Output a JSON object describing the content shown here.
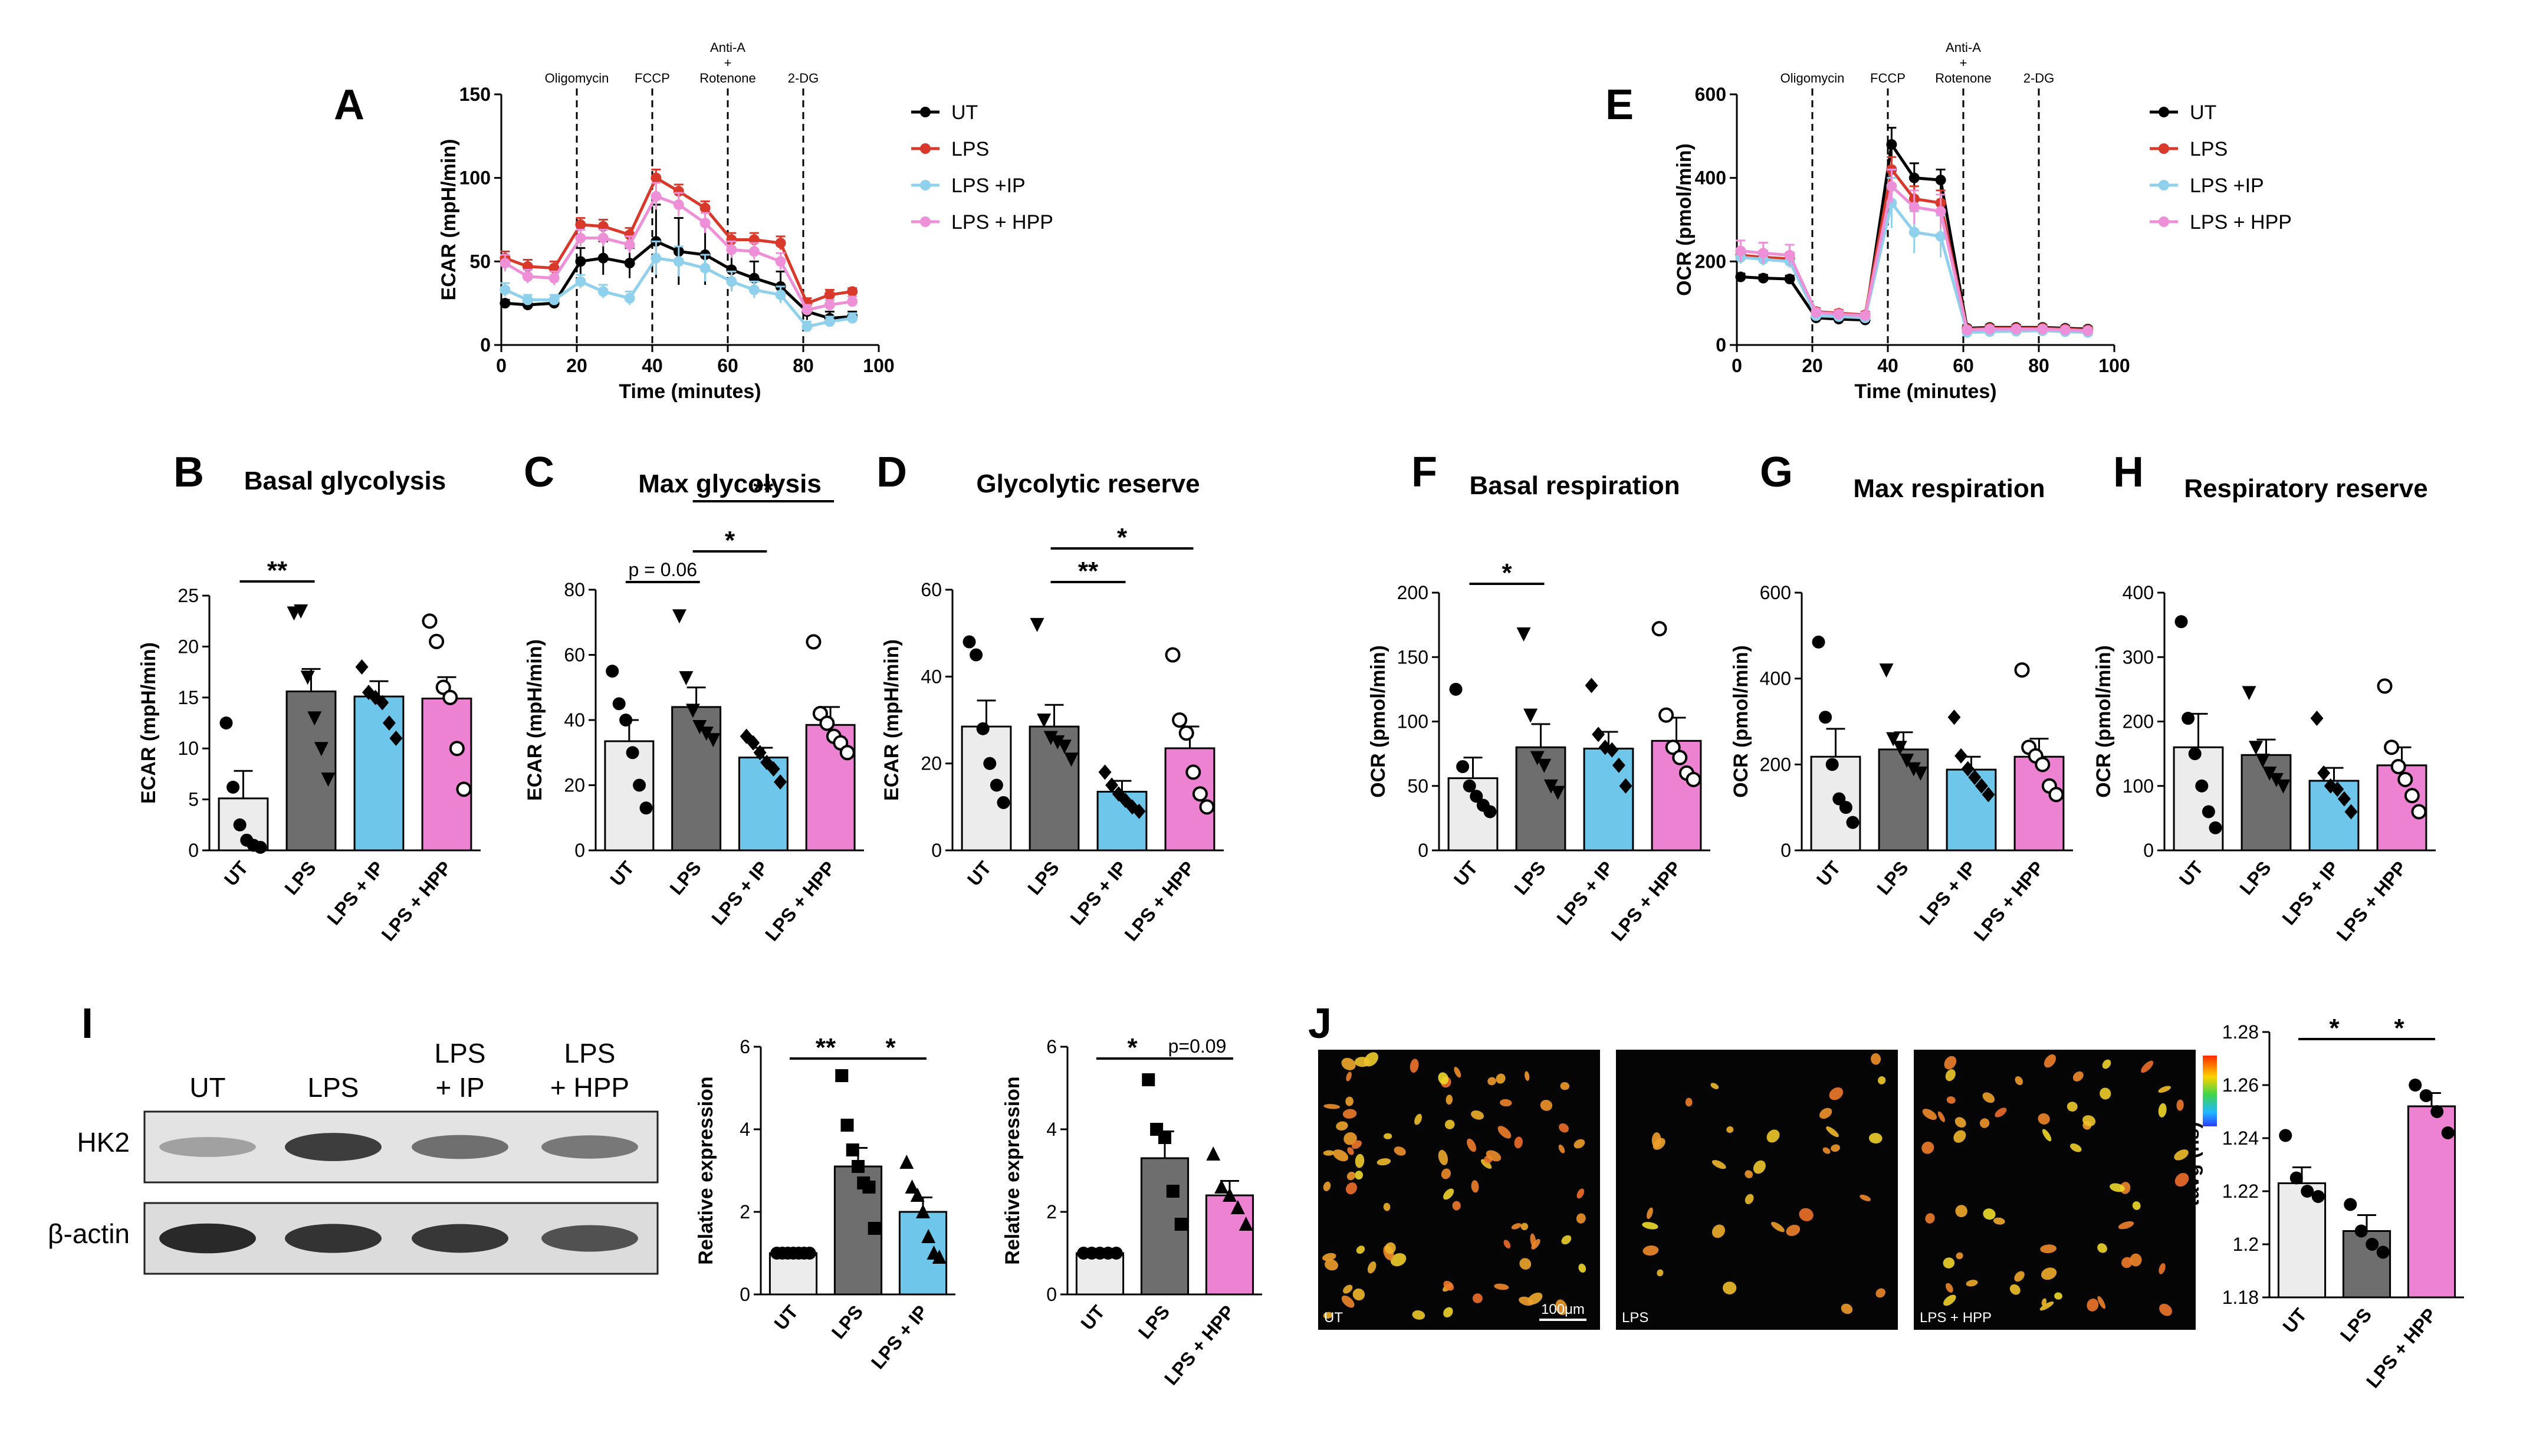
{
  "colors": {
    "UT": "#ececec",
    "LPS": "#6e6e6e",
    "IP": "#6ec6ea",
    "HPP": "#ee82d2",
    "line_UT": "#000000",
    "line_LPS": "#d9392b",
    "line_IP": "#8fd0ec",
    "line_HPP": "#ee90d8"
  },
  "legend": [
    {
      "label": "UT",
      "color_key": "line_UT"
    },
    {
      "label": "LPS",
      "color_key": "line_LPS"
    },
    {
      "label": "LPS +IP",
      "color_key": "line_IP"
    },
    {
      "label": "LPS + HPP",
      "color_key": "line_HPP"
    }
  ],
  "legend_E": [
    {
      "label": "UT",
      "color_key": "line_UT"
    },
    {
      "label": "LPS",
      "color_key": "line_LPS"
    },
    {
      "label": "LPS +IP",
      "color_key": "line_IP"
    },
    {
      "label": "LPS + HPP",
      "color_key": "line_HPP"
    }
  ],
  "blot": {
    "lanes": [
      "UT",
      "LPS",
      "LPS\n+ IP",
      "LPS\n+ HPP"
    ],
    "rows": [
      "HK2",
      "β-actin"
    ],
    "hk2_intensity": [
      0.35,
      0.85,
      0.6,
      0.55
    ],
    "actin_intensity": [
      0.95,
      0.9,
      0.88,
      0.75
    ]
  },
  "micro": {
    "labels": [
      "UT",
      "LPS",
      "LPS + HPP"
    ],
    "scalebar": "100μm",
    "cell_counts": [
      80,
      30,
      55
    ]
  },
  "chart_data": [
    {
      "id": "A",
      "type": "line",
      "panel": "A",
      "xlabel": "Time (minutes)",
      "ylabel": "ECAR (mpH/min)",
      "xlim": [
        0,
        100
      ],
      "ylim": [
        0,
        150
      ],
      "xticks": [
        0,
        20,
        40,
        60,
        80,
        100
      ],
      "yticks": [
        0,
        50,
        100,
        150
      ],
      "injections": [
        {
          "x": 20,
          "label": "Oligomycin"
        },
        {
          "x": 40,
          "label": "FCCP"
        },
        {
          "x": 60,
          "label": "Anti-A\n+\nRotenone"
        },
        {
          "x": 80,
          "label": "2-DG"
        }
      ],
      "x": [
        1,
        7,
        14,
        21,
        27,
        34,
        41,
        47,
        54,
        61,
        67,
        74,
        81,
        87,
        93
      ],
      "series": [
        {
          "name": "UT",
          "color_key": "line_UT",
          "values": [
            25,
            24,
            25,
            50,
            52,
            49,
            62,
            56,
            54,
            45,
            40,
            35,
            20,
            16,
            17
          ],
          "err": [
            2,
            2,
            2,
            8,
            10,
            9,
            22,
            20,
            18,
            12,
            10,
            9,
            5,
            4,
            3
          ]
        },
        {
          "name": "LPS",
          "color_key": "line_LPS",
          "values": [
            52,
            47,
            46,
            72,
            71,
            66,
            100,
            92,
            82,
            63,
            63,
            61,
            25,
            30,
            32
          ],
          "err": [
            4,
            4,
            4,
            4,
            4,
            4,
            5,
            4,
            4,
            4,
            4,
            4,
            3,
            3,
            2
          ]
        },
        {
          "name": "LPS +IP",
          "color_key": "line_IP",
          "values": [
            33,
            27,
            27,
            38,
            32,
            28,
            52,
            50,
            46,
            38,
            33,
            30,
            11,
            14,
            16
          ],
          "err": [
            4,
            3,
            3,
            4,
            4,
            4,
            10,
            9,
            8,
            6,
            5,
            5,
            3,
            3,
            3
          ]
        },
        {
          "name": "LPS + HPP",
          "color_key": "line_HPP",
          "values": [
            49,
            41,
            40,
            64,
            64,
            60,
            89,
            84,
            73,
            57,
            56,
            50,
            21,
            24,
            26
          ],
          "err": [
            5,
            4,
            4,
            5,
            5,
            5,
            8,
            7,
            6,
            5,
            5,
            5,
            3,
            3,
            3
          ]
        }
      ]
    },
    {
      "id": "E",
      "type": "line",
      "panel": "E",
      "xlabel": "Time (minutes)",
      "ylabel": "OCR (pmol/min)",
      "xlim": [
        0,
        100
      ],
      "ylim": [
        0,
        600
      ],
      "xticks": [
        0,
        20,
        40,
        60,
        80,
        100
      ],
      "yticks": [
        0,
        200,
        400,
        600
      ],
      "injections": [
        {
          "x": 20,
          "label": "Oligomycin"
        },
        {
          "x": 40,
          "label": "FCCP"
        },
        {
          "x": 60,
          "label": "Anti-A\n+\nRotenone"
        },
        {
          "x": 80,
          "label": "2-DG"
        }
      ],
      "x": [
        1,
        7,
        14,
        21,
        27,
        34,
        41,
        47,
        54,
        61,
        67,
        74,
        81,
        87,
        93
      ],
      "series": [
        {
          "name": "UT",
          "color_key": "line_UT",
          "values": [
            163,
            160,
            158,
            65,
            62,
            60,
            480,
            400,
            395,
            40,
            42,
            42,
            42,
            40,
            38
          ],
          "err": [
            8,
            8,
            8,
            6,
            6,
            6,
            40,
            35,
            25,
            6,
            6,
            6,
            6,
            6,
            6
          ]
        },
        {
          "name": "LPS",
          "color_key": "line_LPS",
          "values": [
            215,
            210,
            206,
            80,
            76,
            72,
            420,
            350,
            340,
            38,
            40,
            40,
            40,
            38,
            36
          ],
          "err": [
            15,
            15,
            15,
            8,
            8,
            8,
            30,
            30,
            30,
            6,
            6,
            6,
            6,
            6,
            6
          ]
        },
        {
          "name": "LPS +IP",
          "color_key": "line_IP",
          "values": [
            210,
            205,
            200,
            70,
            68,
            65,
            340,
            270,
            260,
            30,
            32,
            33,
            34,
            32,
            30
          ],
          "err": [
            15,
            15,
            15,
            8,
            8,
            8,
            60,
            50,
            50,
            6,
            6,
            6,
            6,
            6,
            6
          ]
        },
        {
          "name": "LPS + HPP",
          "color_key": "line_HPP",
          "values": [
            225,
            220,
            215,
            78,
            74,
            70,
            380,
            330,
            320,
            36,
            38,
            38,
            38,
            36,
            34
          ],
          "err": [
            25,
            25,
            25,
            8,
            8,
            8,
            40,
            40,
            40,
            6,
            6,
            6,
            6,
            6,
            6
          ]
        }
      ]
    },
    {
      "id": "B",
      "type": "bar",
      "panel": "B",
      "title": "Basal glycolysis",
      "ylabel": "ECAR (mpH/min)",
      "ylim": [
        0,
        25
      ],
      "yticks": [
        0,
        5,
        10,
        15,
        20,
        25
      ],
      "categories": [
        "UT",
        "LPS",
        "LPS + IP",
        "LPS + HPP"
      ],
      "color_keys": [
        "UT",
        "LPS",
        "IP",
        "HPP"
      ],
      "markers": [
        "circle",
        "tri-down",
        "diamond",
        "open-circle"
      ],
      "values": [
        5.1,
        15.6,
        15.1,
        14.9
      ],
      "err": [
        2.7,
        2.2,
        1.5,
        2.1
      ],
      "points": [
        [
          12.5,
          6.2,
          2.5,
          1.0,
          0.5,
          0.3
        ],
        [
          23.3,
          23.5,
          17.0,
          13.0,
          10.0,
          7.0
        ],
        [
          18.0,
          15.5,
          15.0,
          14.5,
          12.5,
          11.0
        ],
        [
          22.5,
          20.5,
          16.0,
          15.0,
          10.0,
          6.0
        ]
      ],
      "sig": [
        {
          "from": 0,
          "to": 1,
          "label": "**"
        }
      ]
    },
    {
      "id": "C",
      "type": "bar",
      "panel": "C",
      "title": "Max glycolysis",
      "ylabel": "ECAR (mpH/min)",
      "ylim": [
        0,
        80
      ],
      "yticks": [
        0,
        20,
        40,
        60,
        80
      ],
      "categories": [
        "UT",
        "LPS",
        "LPS + IP",
        "LPS + HPP"
      ],
      "color_keys": [
        "UT",
        "LPS",
        "IP",
        "HPP"
      ],
      "markers": [
        "circle",
        "tri-down",
        "diamond",
        "open-circle"
      ],
      "values": [
        33.5,
        44.0,
        28.5,
        38.5
      ],
      "err": [
        6.5,
        6.0,
        3.0,
        5.5
      ],
      "points": [
        [
          55.0,
          45.0,
          40.0,
          30.0,
          20.0,
          13.0
        ],
        [
          72.0,
          53.0,
          43.0,
          38.0,
          36.0,
          34.0
        ],
        [
          35.0,
          33.0,
          30.0,
          27.0,
          25.0,
          21.0
        ],
        [
          64.0,
          42.0,
          39.0,
          35.0,
          33.0,
          30.0
        ]
      ],
      "sig": [
        {
          "from": 0,
          "to": 1,
          "label": "p = 0.06"
        },
        {
          "from": 1,
          "to": 2,
          "label": "*"
        },
        {
          "from": 1,
          "to": 3,
          "label": "**"
        }
      ]
    },
    {
      "id": "D",
      "type": "bar",
      "panel": "D",
      "title": "Glycolytic reserve",
      "ylabel": "ECAR (mpH/min)",
      "ylim": [
        0,
        60
      ],
      "yticks": [
        0,
        20,
        40,
        60
      ],
      "categories": [
        "UT",
        "LPS",
        "LPS + IP",
        "LPS + HPP"
      ],
      "color_keys": [
        "UT",
        "LPS",
        "IP",
        "HPP"
      ],
      "markers": [
        "circle",
        "tri-down",
        "diamond",
        "open-circle"
      ],
      "values": [
        28.5,
        28.5,
        13.5,
        23.5
      ],
      "err": [
        6.0,
        5.0,
        2.5,
        5.0
      ],
      "points": [
        [
          48.0,
          45.0,
          28.0,
          20.0,
          15.0,
          11.0
        ],
        [
          52.0,
          30.0,
          26.0,
          25.0,
          24.0,
          21.0
        ],
        [
          18.0,
          15.0,
          13.0,
          11.5,
          10.0,
          9.0
        ],
        [
          45.0,
          30.0,
          27.0,
          18.0,
          13.0,
          10.0
        ]
      ],
      "sig": [
        {
          "from": 1,
          "to": 2,
          "label": "**"
        },
        {
          "from": 1,
          "to": 3,
          "label": "*"
        }
      ]
    },
    {
      "id": "F",
      "type": "bar",
      "panel": "F",
      "title": "Basal respiration",
      "ylabel": "OCR (pmol/min)",
      "ylim": [
        0,
        200
      ],
      "yticks": [
        0,
        50,
        100,
        150,
        200
      ],
      "categories": [
        "UT",
        "LPS",
        "LPS + IP",
        "LPS + HPP"
      ],
      "color_keys": [
        "UT",
        "LPS",
        "IP",
        "HPP"
      ],
      "markers": [
        "circle",
        "tri-down",
        "diamond",
        "open-circle"
      ],
      "values": [
        56,
        80,
        79,
        85
      ],
      "err": [
        16,
        18,
        13,
        18
      ],
      "points": [
        [
          125,
          65,
          50,
          42,
          35,
          30
        ],
        [
          168,
          105,
          72,
          66,
          50,
          45
        ],
        [
          128,
          90,
          80,
          78,
          66,
          50
        ],
        [
          172,
          105,
          80,
          72,
          60,
          55
        ]
      ],
      "sig": [
        {
          "from": 0,
          "to": 1,
          "label": "*"
        }
      ]
    },
    {
      "id": "G",
      "type": "bar",
      "panel": "G",
      "title": "Max respiration",
      "ylabel": "OCR (pmol/min)",
      "ylim": [
        0,
        600
      ],
      "yticks": [
        0,
        200,
        400,
        600
      ],
      "categories": [
        "UT",
        "LPS",
        "LPS + IP",
        "LPS + HPP"
      ],
      "color_keys": [
        "UT",
        "LPS",
        "IP",
        "HPP"
      ],
      "markers": [
        "circle",
        "tri-down",
        "diamond",
        "open-circle"
      ],
      "values": [
        218,
        235,
        188,
        218
      ],
      "err": [
        65,
        40,
        30,
        42
      ],
      "points": [
        [
          485,
          310,
          200,
          120,
          100,
          65
        ],
        [
          420,
          260,
          240,
          210,
          190,
          180
        ],
        [
          310,
          220,
          190,
          170,
          150,
          130
        ],
        [
          420,
          240,
          220,
          200,
          150,
          130
        ]
      ],
      "sig": []
    },
    {
      "id": "H",
      "type": "bar",
      "panel": "H",
      "title": "Respiratory reserve",
      "ylabel": "OCR (pmol/min)",
      "ylim": [
        0,
        400
      ],
      "yticks": [
        0,
        100,
        200,
        300,
        400
      ],
      "categories": [
        "UT",
        "LPS",
        "LPS + IP",
        "LPS + HPP"
      ],
      "color_keys": [
        "UT",
        "LPS",
        "IP",
        "HPP"
      ],
      "markers": [
        "circle",
        "tri-down",
        "diamond",
        "open-circle"
      ],
      "values": [
        160,
        148,
        108,
        132
      ],
      "err": [
        52,
        24,
        20,
        28
      ],
      "points": [
        [
          355,
          205,
          150,
          100,
          60,
          35
        ],
        [
          245,
          160,
          140,
          120,
          110,
          100
        ],
        [
          205,
          120,
          100,
          95,
          80,
          60
        ],
        [
          255,
          160,
          130,
          110,
          85,
          60
        ]
      ],
      "sig": []
    },
    {
      "id": "I1",
      "type": "bar",
      "panel": "",
      "title": "",
      "ylabel": "Relative expression",
      "ylim": [
        0,
        6
      ],
      "yticks": [
        0,
        2,
        4,
        6
      ],
      "categories": [
        "UT",
        "LPS",
        "LPS + IP"
      ],
      "color_keys": [
        "UT",
        "LPS",
        "IP"
      ],
      "markers": [
        "circle",
        "square",
        "triangle"
      ],
      "values": [
        1.0,
        3.1,
        2.0
      ],
      "err": [
        0.02,
        0.45,
        0.35
      ],
      "points": [
        [
          1.0,
          1.0,
          1.0,
          1.0,
          1.0,
          1.0,
          1.0
        ],
        [
          5.3,
          4.1,
          3.5,
          3.1,
          2.7,
          2.6,
          1.6
        ],
        [
          3.2,
          2.6,
          2.4,
          2.0,
          1.4,
          1.0,
          0.9
        ]
      ],
      "sig": [
        {
          "from": 0,
          "to": 1,
          "label": "**"
        },
        {
          "from": 1,
          "to": 2,
          "label": "*"
        }
      ]
    },
    {
      "id": "I2",
      "type": "bar",
      "panel": "",
      "title": "",
      "ylabel": "Relative expression",
      "ylim": [
        0,
        6
      ],
      "yticks": [
        0,
        2,
        4,
        6
      ],
      "categories": [
        "UT",
        "LPS",
        "LPS + HPP"
      ],
      "color_keys": [
        "UT",
        "LPS",
        "HPP"
      ],
      "markers": [
        "circle",
        "square",
        "triangle"
      ],
      "values": [
        1.0,
        3.3,
        2.4
      ],
      "err": [
        0.02,
        0.65,
        0.35
      ],
      "points": [
        [
          1.0,
          1.0,
          1.0,
          1.0,
          1.0
        ],
        [
          5.2,
          4.0,
          3.8,
          2.5,
          1.7
        ],
        [
          3.4,
          2.6,
          2.4,
          2.1,
          1.7
        ]
      ],
      "sig": [
        {
          "from": 0,
          "to": 1,
          "label": "*"
        },
        {
          "from": 1,
          "to": 2,
          "label": "p=0.09"
        }
      ]
    },
    {
      "id": "J",
      "type": "bar",
      "panel": "",
      "title": "",
      "ylabel": "τavg (ns)",
      "ylim": [
        1.18,
        1.28
      ],
      "yticks": [
        1.18,
        1.2,
        1.22,
        1.24,
        1.26,
        1.28
      ],
      "categories": [
        "UT",
        "LPS",
        "LPS + HPP"
      ],
      "color_keys": [
        "UT",
        "LPS",
        "HPP"
      ],
      "markers": [
        "circle",
        "circle",
        "circle"
      ],
      "values": [
        1.223,
        1.205,
        1.252
      ],
      "err": [
        0.006,
        0.006,
        0.005
      ],
      "points": [
        [
          1.241,
          1.225,
          1.22,
          1.218
        ],
        [
          1.215,
          1.205,
          1.2,
          1.197
        ],
        [
          1.26,
          1.256,
          1.25,
          1.242
        ]
      ],
      "sig": [
        {
          "from": 0,
          "to": 1,
          "label": "*"
        },
        {
          "from": 1,
          "to": 2,
          "label": "*"
        }
      ]
    }
  ],
  "panel_letters": {
    "A": "A",
    "E": "E",
    "B": "B",
    "C": "C",
    "D": "D",
    "F": "F",
    "G": "G",
    "H": "H",
    "I": "I",
    "J": "J"
  }
}
